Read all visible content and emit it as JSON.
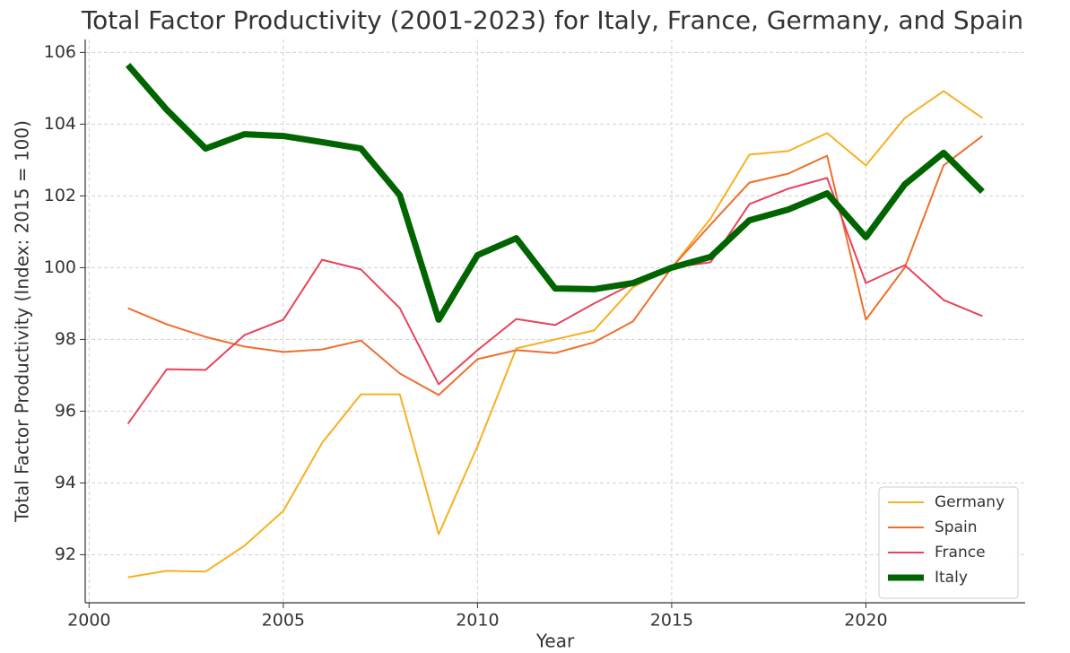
{
  "chart_data": {
    "type": "line",
    "title": "Total Factor Productivity (2001-2023) for Italy, France, Germany, and Spain",
    "xlabel": "Year",
    "ylabel": "Total Factor Productivity (Index: 2015 = 100)",
    "x": [
      2001,
      2002,
      2003,
      2004,
      2005,
      2006,
      2007,
      2008,
      2009,
      2010,
      2011,
      2012,
      2013,
      2014,
      2015,
      2016,
      2017,
      2018,
      2019,
      2020,
      2021,
      2022,
      2023
    ],
    "series": [
      {
        "name": "Germany",
        "color": "#f7b020",
        "values": [
          91.37,
          91.55,
          91.53,
          92.25,
          93.22,
          95.12,
          96.47,
          96.47,
          92.57,
          95.02,
          97.75,
          98.0,
          98.25,
          99.45,
          100,
          101.37,
          103.15,
          103.25,
          103.75,
          102.85,
          104.17,
          104.92,
          104.17
        ]
      },
      {
        "name": "Spain",
        "color": "#ee6f2d",
        "values": [
          98.87,
          98.42,
          98.07,
          97.8,
          97.65,
          97.72,
          97.97,
          97.05,
          96.45,
          97.45,
          97.7,
          97.62,
          97.92,
          98.5,
          100,
          101.2,
          102.37,
          102.62,
          103.12,
          98.55,
          100,
          102.85,
          103.67
        ]
      },
      {
        "name": "France",
        "color": "#e8435a",
        "values": [
          95.65,
          97.17,
          97.15,
          98.12,
          98.55,
          100.22,
          99.95,
          98.87,
          96.75,
          97.7,
          98.57,
          98.4,
          99.0,
          99.55,
          100,
          100.15,
          101.77,
          102.2,
          102.5,
          99.57,
          100.07,
          99.1,
          98.65
        ]
      },
      {
        "name": "Italy",
        "color": "#006400",
        "values": [
          105.65,
          104.4,
          103.32,
          103.72,
          103.67,
          103.5,
          103.32,
          102.02,
          98.55,
          100.35,
          100.82,
          99.42,
          99.4,
          99.57,
          100,
          100.3,
          101.32,
          101.62,
          102.07,
          100.85,
          102.32,
          103.2,
          102.12
        ]
      }
    ],
    "xlim": [
      1999.9,
      2024.1
    ],
    "xticks": [
      2000,
      2005,
      2010,
      2015,
      2020
    ],
    "ylim": [
      90.66,
      106.36
    ],
    "yticks": [
      92,
      94,
      96,
      98,
      100,
      102,
      104,
      106
    ],
    "grid": true,
    "legend": "lower right"
  }
}
